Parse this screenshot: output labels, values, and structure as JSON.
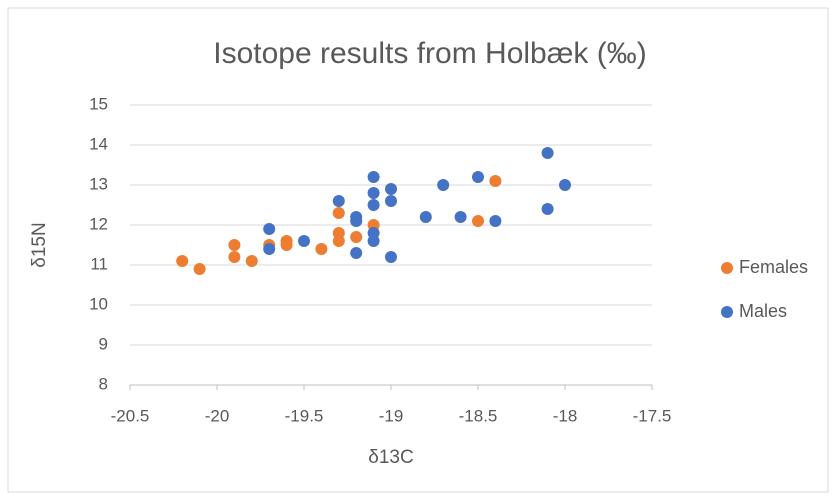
{
  "chart_data": {
    "type": "scatter",
    "title": "Isotope results from Holbæk (‰)",
    "x_label": "δ13C",
    "y_label": "δ15N",
    "xlim": [
      -20.5,
      -17.5
    ],
    "xticks": [
      -20.5,
      -20,
      -19.5,
      -19,
      -18.5,
      -18,
      -17.5
    ],
    "ylim": [
      8,
      15
    ],
    "yticks": [
      8,
      9,
      10,
      11,
      12,
      13,
      14,
      15
    ],
    "grid": true,
    "legend": "right",
    "series": [
      {
        "name": "Females",
        "color": "#ed7d31",
        "x": [
          -20.2,
          -20.1,
          -19.9,
          -19.9,
          -19.8,
          -19.7,
          -19.6,
          -19.6,
          -19.4,
          -19.3,
          -19.3,
          -19.3,
          -19.2,
          -19.1,
          -18.5,
          -18.4
        ],
        "values": [
          11.1,
          10.9,
          11.5,
          11.2,
          11.1,
          11.5,
          11.6,
          11.5,
          11.4,
          12.3,
          11.8,
          11.6,
          11.7,
          12.0,
          12.1,
          13.1
        ]
      },
      {
        "name": "Males",
        "color": "#4472c4",
        "x": [
          -19.7,
          -19.7,
          -19.5,
          -19.3,
          -19.2,
          -19.2,
          -19.2,
          -19.1,
          -19.1,
          -19.1,
          -19.1,
          -19.1,
          -19.0,
          -19.0,
          -19.0,
          -18.8,
          -18.7,
          -18.6,
          -18.5,
          -18.4,
          -18.1,
          -18.1,
          -18.0
        ],
        "values": [
          11.9,
          11.4,
          11.6,
          12.6,
          12.2,
          12.1,
          11.3,
          13.2,
          12.8,
          12.5,
          11.8,
          11.6,
          12.9,
          12.6,
          11.2,
          12.2,
          13.0,
          12.2,
          13.2,
          12.1,
          13.8,
          12.4,
          13.0
        ]
      }
    ]
  }
}
